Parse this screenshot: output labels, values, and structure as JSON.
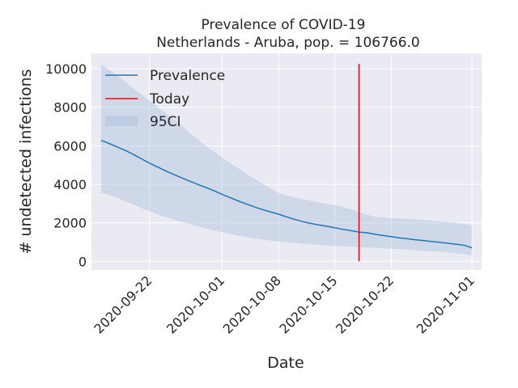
{
  "chart_data": {
    "type": "line",
    "title": "Prevalence of COVID-19",
    "subtitle": "Netherlands - Aruba, pop. = 106766.0",
    "xlabel": "Date",
    "ylabel": "# undetected infections",
    "x_ticks": [
      {
        "label": "2020-09-22",
        "day": 6
      },
      {
        "label": "2020-10-01",
        "day": 15
      },
      {
        "label": "2020-10-08",
        "day": 22
      },
      {
        "label": "2020-10-15",
        "day": 29
      },
      {
        "label": "2020-10-22",
        "day": 36
      },
      {
        "label": "2020-11-01",
        "day": 46
      }
    ],
    "xlim": [
      -1.2,
      47.2
    ],
    "ylim": [
      -450,
      10800
    ],
    "y_ticks": [
      0,
      2000,
      4000,
      6000,
      8000,
      10000
    ],
    "y_tick_labels": [
      "0",
      "2000",
      "4000",
      "6000",
      "8000",
      "10000"
    ],
    "x_day0": "2020-09-16",
    "series": [
      {
        "name": "Prevalence",
        "color": "#1f77b4",
        "x": [
          0,
          1,
          2,
          3,
          4,
          5,
          6,
          7,
          8,
          9,
          10,
          11,
          12,
          13,
          14,
          15,
          16,
          17,
          18,
          19,
          20,
          21,
          22,
          23,
          24,
          25,
          26,
          27,
          28,
          29,
          30,
          31,
          32,
          33,
          34,
          35,
          36,
          37,
          38,
          39,
          40,
          41,
          42,
          43,
          44,
          45,
          46
        ],
        "y": [
          6280,
          6120,
          5940,
          5760,
          5550,
          5320,
          5100,
          4900,
          4700,
          4510,
          4330,
          4160,
          3990,
          3830,
          3670,
          3480,
          3310,
          3140,
          2980,
          2830,
          2690,
          2570,
          2450,
          2310,
          2180,
          2060,
          1970,
          1890,
          1820,
          1740,
          1660,
          1590,
          1520,
          1480,
          1400,
          1340,
          1280,
          1220,
          1170,
          1120,
          1080,
          1030,
          990,
          940,
          890,
          840,
          700
        ]
      }
    ],
    "ci_band": {
      "name": "95CI",
      "color": "#b0c4de",
      "x": [
        0,
        1,
        2,
        3,
        4,
        5,
        6,
        7,
        8,
        9,
        10,
        11,
        12,
        13,
        14,
        15,
        16,
        17,
        18,
        19,
        20,
        21,
        22,
        23,
        24,
        25,
        26,
        27,
        28,
        29,
        30,
        31,
        32,
        33,
        34,
        35,
        36,
        37,
        38,
        39,
        40,
        41,
        42,
        43,
        44,
        45,
        46
      ],
      "upper": [
        10250,
        9950,
        9650,
        9320,
        8990,
        8670,
        8350,
        8020,
        7690,
        7370,
        7040,
        6680,
        6320,
        5980,
        5680,
        5400,
        5110,
        4840,
        4560,
        4290,
        4030,
        3780,
        3560,
        3430,
        3320,
        3230,
        3150,
        3070,
        2990,
        2910,
        2820,
        2710,
        2570,
        2420,
        2310,
        2270,
        2250,
        2230,
        2210,
        2180,
        2150,
        2110,
        2080,
        2040,
        2000,
        1950,
        1900
      ],
      "lower": [
        3550,
        3450,
        3300,
        3120,
        2940,
        2760,
        2600,
        2440,
        2300,
        2170,
        2040,
        1920,
        1810,
        1700,
        1600,
        1510,
        1420,
        1340,
        1260,
        1190,
        1130,
        1080,
        1030,
        990,
        950,
        910,
        880,
        850,
        820,
        800,
        780,
        760,
        740,
        720,
        700,
        680,
        660,
        640,
        610,
        580,
        550,
        520,
        490,
        460,
        420,
        380,
        300
      ]
    },
    "today_line": {
      "name": "Today",
      "day": 32,
      "y_from": 0,
      "y_to": 10250,
      "color": "#ff0000"
    },
    "legend": {
      "placement": "top-left",
      "entries": [
        "Prevalence",
        "Today",
        "95CI"
      ]
    },
    "style": {
      "plot_bg": "#eaeaf2",
      "grid_color": "#ffffff",
      "grid": true
    }
  }
}
